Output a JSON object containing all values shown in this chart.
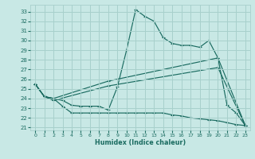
{
  "xlabel": "Humidex (Indice chaleur)",
  "bg_color": "#c8e8e5",
  "grid_color": "#a8d0cc",
  "line_color": "#1a6b60",
  "xlim": [
    -0.5,
    23.5
  ],
  "ylim": [
    20.7,
    33.7
  ],
  "yticks": [
    21,
    22,
    23,
    24,
    25,
    26,
    27,
    28,
    29,
    30,
    31,
    32,
    33
  ],
  "xticks": [
    0,
    1,
    2,
    3,
    4,
    5,
    6,
    7,
    8,
    9,
    10,
    11,
    12,
    13,
    14,
    15,
    16,
    17,
    18,
    19,
    20,
    21,
    22,
    23
  ],
  "line_peak_x": [
    0,
    1,
    2,
    3,
    4,
    5,
    6,
    7,
    8,
    9,
    10,
    11,
    12,
    13,
    14,
    15,
    16,
    17,
    18,
    19,
    20,
    21,
    22,
    23
  ],
  "line_peak_y": [
    25.5,
    24.2,
    24.0,
    23.8,
    23.3,
    23.2,
    23.2,
    23.2,
    22.8,
    25.2,
    29.0,
    33.2,
    32.5,
    32.0,
    30.3,
    29.7,
    29.5,
    29.5,
    29.3,
    30.0,
    28.2,
    23.3,
    22.5,
    21.2
  ],
  "line_flat_x": [
    0,
    1,
    2,
    3,
    4,
    5,
    6,
    7,
    8,
    9,
    10,
    11,
    12,
    13,
    14,
    15,
    16,
    17,
    18,
    19,
    20,
    21,
    22,
    23
  ],
  "line_flat_y": [
    25.5,
    24.2,
    24.0,
    23.2,
    22.5,
    22.5,
    22.5,
    22.5,
    22.5,
    22.5,
    22.5,
    22.5,
    22.5,
    22.5,
    22.5,
    22.3,
    22.2,
    22.0,
    21.9,
    21.8,
    21.7,
    21.5,
    21.3,
    21.2
  ],
  "line_diag1_x": [
    0,
    1,
    2,
    8,
    20,
    23
  ],
  "line_diag1_y": [
    25.5,
    24.2,
    24.0,
    25.8,
    28.2,
    21.2
  ],
  "line_diag2_x": [
    0,
    1,
    2,
    8,
    20,
    23
  ],
  "line_diag2_y": [
    25.5,
    24.2,
    23.8,
    25.3,
    27.2,
    21.2
  ]
}
